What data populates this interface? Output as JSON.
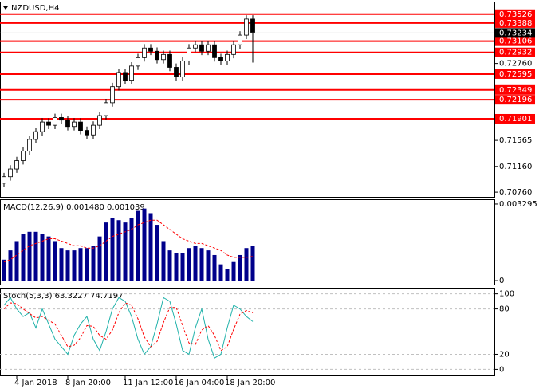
{
  "chart_data": [
    {
      "type": "candlestick",
      "title": "NZDUSD,H4",
      "x": [
        null,
        null,
        "4 Jan 2018",
        null,
        null,
        null,
        null,
        null,
        null,
        null,
        "8 Jan 20:00",
        null,
        null,
        null,
        null,
        null,
        null,
        null,
        null,
        "11 Jan 12:00",
        null,
        null,
        null,
        null,
        null,
        null,
        null,
        "16 Jan 04:00",
        null,
        null,
        null,
        null,
        null,
        null,
        null,
        "18 Jan 20:00",
        null,
        null,
        null,
        null
      ],
      "open": [
        0.709,
        0.71,
        0.7112,
        0.7125,
        0.714,
        0.7158,
        0.717,
        0.7185,
        0.718,
        0.7192,
        0.7188,
        0.7178,
        0.7185,
        0.7172,
        0.7165,
        0.718,
        0.7195,
        0.7215,
        0.724,
        0.7262,
        0.725,
        0.7272,
        0.7285,
        0.73,
        0.7295,
        0.7282,
        0.729,
        0.727,
        0.7255,
        0.728,
        0.73,
        0.7305,
        0.7295,
        0.7305,
        0.7285,
        0.728,
        0.729,
        0.7305,
        0.732,
        0.7345
      ],
      "high": [
        0.7106,
        0.7118,
        0.7131,
        0.7146,
        0.7164,
        0.7176,
        0.7191,
        0.7191,
        0.7198,
        0.7198,
        0.7194,
        0.7191,
        0.7191,
        0.7178,
        0.7186,
        0.7201,
        0.7221,
        0.7246,
        0.7268,
        0.7268,
        0.7278,
        0.7291,
        0.7306,
        0.7306,
        0.7301,
        0.7296,
        0.7296,
        0.7276,
        0.7286,
        0.7306,
        0.7311,
        0.7311,
        0.7311,
        0.7311,
        0.7291,
        0.7296,
        0.7311,
        0.7326,
        0.7351,
        0.7351
      ],
      "low": [
        0.7084,
        0.7094,
        0.7106,
        0.7119,
        0.7134,
        0.7152,
        0.7164,
        0.7174,
        0.7174,
        0.7182,
        0.7172,
        0.7172,
        0.7166,
        0.7159,
        0.7159,
        0.7174,
        0.7189,
        0.7209,
        0.7234,
        0.7244,
        0.7244,
        0.7266,
        0.7279,
        0.7289,
        0.7276,
        0.7276,
        0.7264,
        0.7249,
        0.7249,
        0.7274,
        0.7294,
        0.7289,
        0.7289,
        0.7279,
        0.7274,
        0.7274,
        0.7284,
        0.7299,
        0.7314,
        0.72774
      ],
      "close": [
        0.71,
        0.7112,
        0.7125,
        0.714,
        0.7158,
        0.717,
        0.7185,
        0.718,
        0.7192,
        0.7188,
        0.7178,
        0.7185,
        0.7172,
        0.7165,
        0.718,
        0.7195,
        0.7215,
        0.724,
        0.7262,
        0.725,
        0.7272,
        0.7285,
        0.73,
        0.7295,
        0.7282,
        0.729,
        0.727,
        0.7255,
        0.728,
        0.73,
        0.7305,
        0.7295,
        0.7305,
        0.7285,
        0.728,
        0.729,
        0.7305,
        0.732,
        0.7345,
        0.73234
      ],
      "ylim": [
        0.70687,
        0.73709
      ],
      "yticks": [
        {
          "value": 0.7076,
          "label": "0.70760"
        },
        {
          "value": 0.7116,
          "label": "0.71160"
        },
        0.71565,
        {
          "value": 0.7276,
          "label": "0.72760"
        }
      ],
      "levels": [
        0.73526,
        0.73388,
        0.73106,
        0.72932,
        0.72595,
        0.72349,
        0.72196,
        0.71901
      ],
      "level_color": "#ff0000",
      "up_color": "#ffffff",
      "down_color": "#000000"
    },
    {
      "type": "bar",
      "title": "MACD(12,26,9) 0.001480 0.001039",
      "values": [
        0.0009,
        0.0013,
        0.0017,
        0.002,
        0.0021,
        0.0021,
        0.002,
        0.0019,
        0.0017,
        0.0014,
        0.0013,
        0.0013,
        0.0014,
        0.0014,
        0.0015,
        0.0019,
        0.0025,
        0.0027,
        0.0026,
        0.0025,
        0.0027,
        0.003,
        0.0031,
        0.0029,
        0.0024,
        0.0017,
        0.0013,
        0.0012,
        0.0012,
        0.0014,
        0.0015,
        0.0014,
        0.0013,
        0.0011,
        0.0007,
        0.0005,
        0.0008,
        0.0011,
        0.0014,
        0.00148
      ],
      "color": "#00008b",
      "signal": [
        0.0008,
        0.0009,
        0.0011,
        0.0013,
        0.0015,
        0.0016,
        0.0017,
        0.0018,
        0.0018,
        0.0017,
        0.0016,
        0.0015,
        0.0015,
        0.0014,
        0.0014,
        0.0015,
        0.0017,
        0.0019,
        0.002,
        0.0021,
        0.0022,
        0.0024,
        0.0025,
        0.0026,
        0.0026,
        0.0024,
        0.0022,
        0.002,
        0.0018,
        0.0017,
        0.0016,
        0.0016,
        0.0015,
        0.0014,
        0.0013,
        0.0011,
        0.001,
        0.001,
        0.001,
        0.001039
      ],
      "signal_color": "#ff0000",
      "ylim": [
        -0.00017,
        0.003465
      ],
      "yticks": [
        0,
        0.003295
      ]
    },
    {
      "type": "line",
      "title": "Stoch(5,3,3) 63.3227 74.7197",
      "series": [
        {
          "color": "#20b2aa",
          "values": [
            85,
            95,
            80,
            70,
            75,
            55,
            80,
            60,
            40,
            30,
            20,
            45,
            60,
            70,
            40,
            25,
            50,
            80,
            95,
            90,
            70,
            40,
            20,
            30,
            60,
            95,
            90,
            60,
            25,
            20,
            55,
            80,
            40,
            15,
            20,
            55,
            85,
            80,
            70,
            63.3227
          ]
        },
        {
          "color": "#ff0000",
          "dashed": true,
          "values": [
            80,
            88,
            87,
            80,
            74,
            68,
            70,
            65,
            60,
            45,
            30,
            32,
            42,
            58,
            57,
            45,
            40,
            52,
            75,
            88,
            85,
            67,
            43,
            30,
            37,
            62,
            82,
            82,
            58,
            35,
            33,
            52,
            58,
            45,
            25,
            30,
            53,
            73,
            78,
            74.7197
          ]
        }
      ],
      "ylim": [
        -8,
        107
      ],
      "yticks": [
        0,
        20,
        80,
        100
      ],
      "grid": true
    }
  ]
}
